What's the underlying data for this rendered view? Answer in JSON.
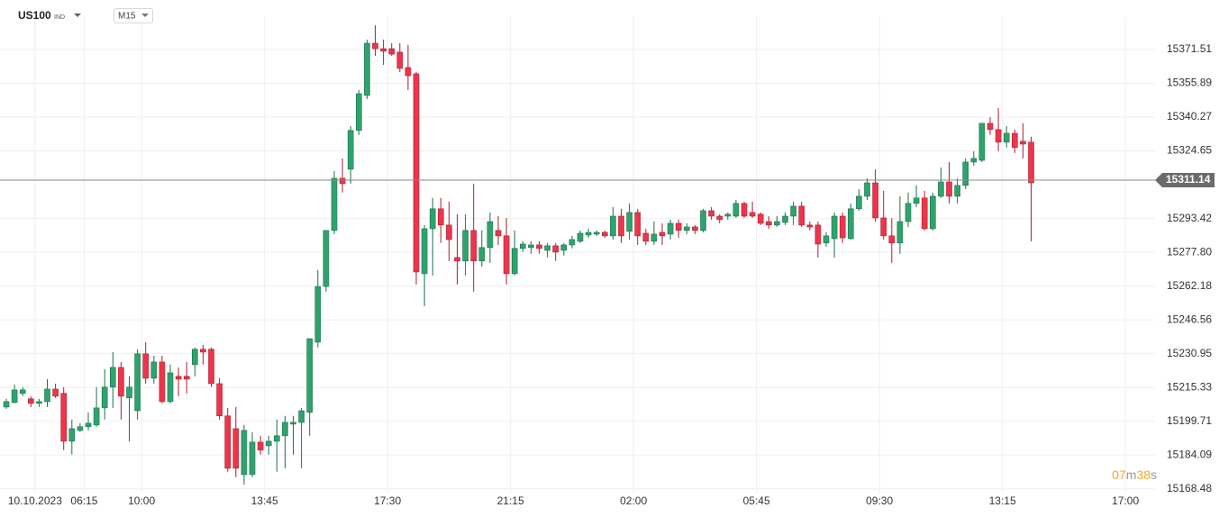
{
  "header": {
    "symbol": "US100",
    "market": "IND",
    "timeframe": "M15"
  },
  "chart_data": {
    "type": "candlestick",
    "up_color": "#2ea36e",
    "down_color": "#f0344b",
    "grid": true,
    "last_price": 15311.14,
    "countdown": [
      "07",
      "m",
      "38",
      "s"
    ],
    "ylim": [
      15166.3,
      15386.9
    ],
    "yticks": [
      15371.51,
      15355.89,
      15340.27,
      15324.65,
      15293.42,
      {
        "value": 15277.8,
        "label": "15277.80"
      },
      15262.18,
      15246.56,
      15230.95,
      15215.33,
      15199.71,
      15184.09,
      15168.48
    ],
    "categories": [
      null,
      null,
      null,
      null,
      "10.10.2023",
      null,
      null,
      null,
      null,
      null,
      "06:15",
      null,
      null,
      null,
      null,
      null,
      null,
      "10:00",
      null,
      null,
      null,
      null,
      null,
      null,
      null,
      null,
      null,
      null,
      null,
      null,
      null,
      null,
      "13:45",
      null,
      null,
      null,
      null,
      null,
      null,
      null,
      null,
      null,
      null,
      null,
      null,
      null,
      null,
      "17:30",
      null,
      null,
      null,
      null,
      null,
      null,
      null,
      null,
      null,
      null,
      null,
      null,
      null,
      null,
      "21:15",
      null,
      null,
      null,
      null,
      null,
      null,
      null,
      null,
      null,
      null,
      null,
      null,
      null,
      null,
      "02:00",
      null,
      null,
      null,
      null,
      null,
      null,
      null,
      null,
      null,
      null,
      null,
      null,
      null,
      null,
      "05:45",
      null,
      null,
      null,
      null,
      null,
      null,
      null,
      null,
      null,
      null,
      null,
      null,
      null,
      null,
      "09:30",
      null,
      null,
      null,
      null,
      null,
      null,
      null,
      null,
      null,
      null,
      null,
      null,
      null,
      null,
      "13:15",
      null,
      null,
      null,
      null,
      null,
      null,
      null,
      null,
      null,
      null,
      null,
      null,
      null,
      null,
      "17:00"
    ],
    "open": [
      15206.3,
      15208.4,
      15212.6,
      15210.1,
      15208.0,
      15208.8,
      15214.6,
      15212.6,
      15190.5,
      15195.5,
      15197.2,
      15198.0,
      15205.9,
      15215.5,
      15224.6,
      15210.5,
      15204.6,
      15230.9,
      15219.6,
      15227.1,
      15208.8,
      15220.5,
      15220.5,
      15225.9,
      15233.0,
      15233.0,
      15217.1,
      15202.2,
      15196.3,
      15175.1,
      15175.1,
      15190.1,
      15188.4,
      15190.5,
      15193.0,
      15198.4,
      15199.2,
      15203.8,
      15236.3,
      15262.0,
      15287.9,
      15312.0,
      15316.2,
      15334.1,
      15350.3,
      15374.4,
      15371.9,
      15371.9,
      15370.3,
      15363.2,
      15360.3,
      15267.9,
      15288.7,
      15297.9,
      15290.4,
      15275.4,
      15273.8,
      15287.9,
      15273.8,
      15280.0,
      15287.9,
      15285.4,
      15267.9,
      15279.6,
      15280.0,
      15281.2,
      15278.7,
      15280.8,
      15278.7,
      15281.2,
      15282.9,
      15285.8,
      15286.2,
      15287.0,
      15285.4,
      15294.5,
      15287.5,
      15296.2,
      15286.6,
      15282.9,
      15287.0,
      15286.2,
      15291.2,
      15287.9,
      15289.5,
      15287.9,
      15297.0,
      15294.5,
      15294.5,
      15294.5,
      15300.4,
      15296.2,
      15295.4,
      15292.0,
      15290.4,
      15291.6,
      15294.5,
      15299.1,
      15290.4,
      15290.4,
      15282.1,
      15284.1,
      15294.5,
      15284.1,
      15297.9,
      15303.7,
      15309.9,
      15293.7,
      15285.4,
      15282.1,
      15292.0,
      15300.4,
      15302.9,
      15288.7,
      15303.7,
      15310.3,
      15303.7,
      15308.7,
      15319.5,
      15320.3,
      15337.4,
      15334.5,
      15328.7,
      15332.8,
      15329.1,
      15328.7,
      null,
      null,
      null,
      null,
      null,
      null,
      null,
      null,
      null,
      null,
      null,
      null
    ],
    "high": [
      15210.1,
      15216.7,
      15215.5,
      15211.3,
      15210.1,
      15219.2,
      15217.1,
      15215.5,
      15200.5,
      15198.8,
      15203.8,
      15215.5,
      15223.8,
      15231.7,
      15227.1,
      15220.5,
      15233.0,
      15236.3,
      15230.0,
      15230.0,
      15225.9,
      15224.6,
      15227.1,
      15233.8,
      15235.0,
      15233.8,
      15219.6,
      15205.9,
      15206.3,
      15198.0,
      15194.7,
      15193.0,
      15193.0,
      15200.5,
      15202.2,
      15202.2,
      15205.9,
      15237.9,
      15269.6,
      15287.9,
      15315.3,
      15321.2,
      15336.1,
      15352.8,
      15376.1,
      15382.7,
      15376.1,
      15374.4,
      15374.4,
      15373.6,
      15361.1,
      15290.4,
      15302.9,
      15302.9,
      15301.2,
      15295.4,
      15295.4,
      15309.5,
      15287.9,
      15296.2,
      15294.5,
      15293.7,
      15287.9,
      15282.9,
      15282.9,
      15282.9,
      15282.1,
      15282.1,
      15282.1,
      15285.4,
      15287.9,
      15288.7,
      15287.9,
      15287.9,
      15298.7,
      15297.9,
      15300.4,
      15297.9,
      15288.7,
      15292.0,
      15291.2,
      15292.9,
      15292.9,
      15291.2,
      15290.4,
      15297.9,
      15298.7,
      15295.4,
      15296.2,
      15302.0,
      15301.2,
      15301.2,
      15296.2,
      15294.5,
      15294.5,
      15296.2,
      15301.2,
      15301.2,
      15292.0,
      15292.0,
      15287.0,
      15296.2,
      15296.2,
      15300.4,
      15307.0,
      15312.0,
      15316.2,
      15306.2,
      15293.7,
      15303.7,
      15305.4,
      15308.7,
      15306.2,
      15305.4,
      15317.0,
      15319.5,
      15312.0,
      15321.2,
      15324.5,
      15337.4,
      15340.3,
      15344.5,
      15336.1,
      15334.5,
      15337.4,
      15331.2,
      null,
      null,
      null,
      null,
      null,
      null,
      null,
      null,
      null,
      null,
      null,
      null
    ],
    "low": [
      15205.5,
      15208.0,
      15211.3,
      15206.3,
      15206.3,
      15206.3,
      15210.5,
      15186.4,
      15184.3,
      15194.7,
      15195.5,
      15197.2,
      15200.5,
      15205.9,
      15200.5,
      15190.5,
      15200.5,
      15217.1,
      15217.1,
      15208.0,
      15208.0,
      15211.3,
      15212.6,
      15220.5,
      15225.9,
      15215.5,
      15200.5,
      15176.4,
      15173.9,
      15170.5,
      15173.9,
      15184.3,
      15184.3,
      15176.4,
      15178.0,
      15184.3,
      15178.0,
      15193.0,
      15233.8,
      15259.6,
      15286.2,
      15305.4,
      15309.5,
      15332.0,
      15348.6,
      15368.6,
      15364.4,
      15368.6,
      15361.1,
      15352.8,
      15262.9,
      15252.9,
      15267.1,
      15282.1,
      15273.8,
      15262.9,
      15267.1,
      15259.6,
      15271.2,
      15272.9,
      15281.2,
      15262.9,
      15267.1,
      15277.9,
      15277.1,
      15277.1,
      15275.4,
      15273.8,
      15276.3,
      15279.6,
      15282.1,
      15284.5,
      15285.4,
      15284.5,
      15283.7,
      15282.1,
      15283.7,
      15281.2,
      15281.2,
      15281.2,
      15281.2,
      15283.7,
      15284.5,
      15286.2,
      15286.2,
      15287.0,
      15292.9,
      15291.2,
      15292.9,
      15293.7,
      15293.7,
      15293.7,
      15290.4,
      15288.7,
      15289.5,
      15290.4,
      15290.4,
      15289.5,
      15287.9,
      15275.4,
      15280.4,
      15275.4,
      15282.1,
      15283.7,
      15297.0,
      15302.0,
      15292.0,
      15283.7,
      15272.9,
      15277.1,
      15289.5,
      15298.7,
      15287.9,
      15287.9,
      15302.9,
      15300.4,
      15300.4,
      15307.0,
      15317.8,
      15319.5,
      15332.0,
      15324.5,
      15326.2,
      15323.7,
      15321.2,
      15282.9,
      null,
      null,
      null,
      null,
      null,
      null,
      null,
      null,
      null,
      null,
      null,
      null
    ],
    "close": [
      15208.8,
      15214.2,
      15214.2,
      15208.0,
      15208.8,
      15214.6,
      15211.3,
      15190.5,
      15196.3,
      15197.2,
      15198.8,
      15205.9,
      15215.5,
      15224.6,
      15211.3,
      15215.5,
      15230.9,
      15219.6,
      15227.1,
      15208.8,
      15222.1,
      15219.2,
      15219.2,
      15233.0,
      15231.7,
      15217.1,
      15202.2,
      15178.0,
      15178.0,
      15195.5,
      15190.1,
      15186.4,
      15190.5,
      15193.0,
      15199.2,
      15199.2,
      15204.6,
      15237.9,
      15262.0,
      15287.9,
      15312.0,
      15309.5,
      15334.1,
      15351.1,
      15374.4,
      15371.9,
      15370.7,
      15369.4,
      15362.8,
      15359.4,
      15268.7,
      15288.7,
      15297.9,
      15290.4,
      15283.7,
      15273.8,
      15287.9,
      15273.8,
      15280.0,
      15292.0,
      15285.4,
      15267.9,
      15279.6,
      15281.6,
      15281.2,
      15279.6,
      15280.8,
      15277.9,
      15281.2,
      15283.7,
      15286.6,
      15287.0,
      15287.0,
      15285.4,
      15294.5,
      15285.4,
      15296.2,
      15285.4,
      15282.9,
      15286.2,
      15285.4,
      15291.2,
      15287.9,
      15289.5,
      15287.9,
      15297.0,
      15294.5,
      15292.9,
      15295.4,
      15300.4,
      15294.5,
      15294.5,
      15291.2,
      15290.4,
      15292.0,
      15294.5,
      15299.1,
      15290.4,
      15289.5,
      15281.6,
      15285.4,
      15294.5,
      15284.5,
      15297.9,
      15303.7,
      15309.9,
      15293.7,
      15285.4,
      15282.1,
      15292.0,
      15300.4,
      15302.9,
      15288.7,
      15303.7,
      15310.3,
      15303.7,
      15308.7,
      15319.5,
      15321.2,
      15337.4,
      15334.5,
      15328.7,
      15332.8,
      15326.2,
      15327.8,
      15309.9,
      null,
      null,
      null,
      null,
      null,
      null,
      null,
      null,
      null,
      null,
      null,
      null
    ]
  }
}
